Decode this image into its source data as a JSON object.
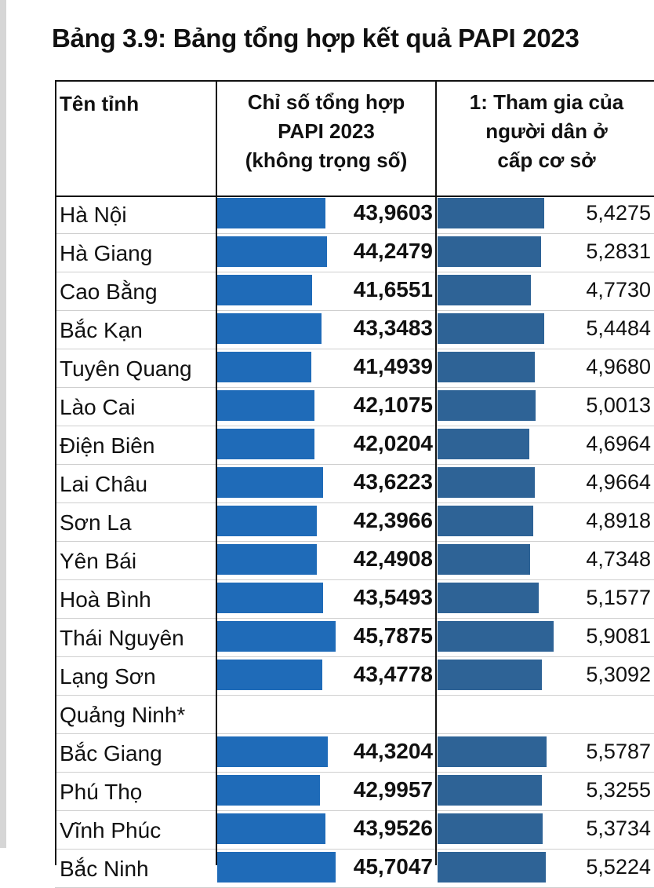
{
  "title": "Bảng 3.9: Bảng tổng hợp kết quả PAPI 2023",
  "headers": {
    "name": "Tên tỉnh",
    "col1": [
      "Chỉ số tổng hợp",
      "PAPI 2023",
      "(không trọng số)"
    ],
    "col2": [
      "1: Tham gia của",
      "người dân ở",
      "cấp cơ sở"
    ]
  },
  "colors": {
    "bar_col1": "#1f6bb8",
    "bar_col2": "#2e6396",
    "text": "#111111"
  },
  "rows": [
    {
      "name": "Hà Nội",
      "papi": "43,9603",
      "participation": "5,4275"
    },
    {
      "name": "Hà Giang",
      "papi": "44,2479",
      "participation": "5,2831"
    },
    {
      "name": "Cao Bằng",
      "papi": "41,6551",
      "participation": "4,7730"
    },
    {
      "name": "Bắc Kạn",
      "papi": "43,3483",
      "participation": "5,4484"
    },
    {
      "name": "Tuyên Quang",
      "papi": "41,4939",
      "participation": "4,9680"
    },
    {
      "name": "Lào Cai",
      "papi": "42,1075",
      "participation": "5,0013"
    },
    {
      "name": "Điện Biên",
      "papi": "42,0204",
      "participation": "4,6964"
    },
    {
      "name": "Lai Châu",
      "papi": "43,6223",
      "participation": "4,9664"
    },
    {
      "name": "Sơn La",
      "papi": "42,3966",
      "participation": "4,8918"
    },
    {
      "name": "Yên Bái",
      "papi": "42,4908",
      "participation": "4,7348"
    },
    {
      "name": "Hoà Bình",
      "papi": "43,5493",
      "participation": "5,1577"
    },
    {
      "name": "Thái Nguyên",
      "papi": "45,7875",
      "participation": "5,9081"
    },
    {
      "name": "Lạng Sơn",
      "papi": "43,4778",
      "participation": "5,3092"
    },
    {
      "name": "Quảng Ninh*",
      "papi": "",
      "participation": ""
    },
    {
      "name": "Bắc Giang",
      "papi": "44,3204",
      "participation": "5,5787"
    },
    {
      "name": "Phú Thọ",
      "papi": "42,9957",
      "participation": "5,3255"
    },
    {
      "name": "Vĩnh Phúc",
      "papi": "43,9526",
      "participation": "5,3734"
    },
    {
      "name": "Bắc Ninh",
      "papi": "45,7047",
      "participation": "5,5224"
    }
  ]
}
